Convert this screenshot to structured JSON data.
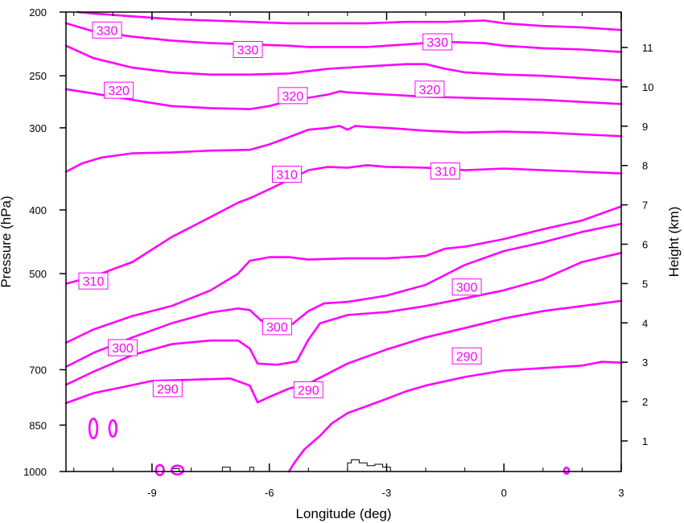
{
  "chart_data": {
    "type": "contour",
    "title": "",
    "xlabel": "Longitude (deg)",
    "ylabel": "Pressure (hPa)",
    "y2label": "Height (km)",
    "xlim": [
      -11.2,
      3
    ],
    "ylim_pressure": [
      1000,
      200
    ],
    "y_scale": "log",
    "x_ticks": [
      -9,
      -6,
      -3,
      0,
      3
    ],
    "x_tick_labels": [
      "-9",
      "-6",
      "-3",
      "0",
      "3"
    ],
    "y_ticks": [
      200,
      250,
      300,
      400,
      500,
      700,
      850,
      1000
    ],
    "y_tick_labels": [
      "200",
      "250",
      "300",
      "400",
      "500",
      "700",
      "850",
      "1000"
    ],
    "y2_ticks": [
      1,
      2,
      3,
      4,
      5,
      6,
      7,
      8,
      9,
      10,
      11
    ],
    "y2_tick_labels": [
      "1",
      "2",
      "3",
      "4",
      "5",
      "6",
      "7",
      "8",
      "9",
      "10",
      "11"
    ],
    "line_color": "#ff00ff",
    "grid": false,
    "series": [
      {
        "value": 290,
        "points": [
          [
            -11.2,
            787
          ],
          [
            -10.5,
            760
          ],
          [
            -9.8,
            745
          ],
          [
            -9.0,
            728
          ],
          [
            -8.0,
            725
          ],
          [
            -7.0,
            722
          ],
          [
            -6.5,
            740
          ],
          [
            -6.3,
            785
          ],
          [
            -6.0,
            770
          ],
          [
            -5.5,
            748
          ],
          [
            -5.0,
            735
          ],
          [
            -4.0,
            685
          ],
          [
            -3.0,
            652
          ],
          [
            -2.0,
            625
          ],
          [
            -1.0,
            605
          ],
          [
            0,
            585
          ],
          [
            1.0,
            570
          ],
          [
            2.0,
            560
          ],
          [
            3.0,
            550
          ]
        ]
      },
      {
        "value": 290,
        "points": [
          [
            -11.2,
            738
          ],
          [
            -10.5,
            705
          ],
          [
            -9.5,
            665
          ],
          [
            -8.5,
            640
          ],
          [
            -7.5,
            632
          ],
          [
            -6.8,
            632
          ],
          [
            -6.5,
            650
          ],
          [
            -6.3,
            685
          ],
          [
            -5.8,
            688
          ],
          [
            -5.3,
            680
          ],
          [
            -5.0,
            630
          ],
          [
            -4.7,
            595
          ],
          [
            -4.0,
            578
          ],
          [
            -3.0,
            572
          ],
          [
            -2.0,
            560
          ],
          [
            -1.0,
            545
          ],
          [
            0,
            530
          ],
          [
            1.0,
            510
          ],
          [
            2.0,
            480
          ],
          [
            3.0,
            465
          ]
        ]
      },
      {
        "value": 300,
        "points": [
          [
            -11.2,
            693
          ],
          [
            -10.5,
            660
          ],
          [
            -9.5,
            625
          ],
          [
            -8.5,
            595
          ],
          [
            -7.5,
            573
          ],
          [
            -6.8,
            565
          ],
          [
            -6.5,
            568
          ],
          [
            -6.2,
            590
          ],
          [
            -5.8,
            600
          ],
          [
            -5.4,
            596
          ],
          [
            -5.0,
            570
          ],
          [
            -4.6,
            555
          ],
          [
            -4.0,
            552
          ],
          [
            -3.0,
            540
          ],
          [
            -2.0,
            520
          ],
          [
            -1.0,
            485
          ],
          [
            0,
            462
          ],
          [
            1.0,
            448
          ],
          [
            2.0,
            432
          ],
          [
            3.0,
            420
          ]
        ]
      },
      {
        "value": 300,
        "points": [
          [
            -11.2,
            637
          ],
          [
            -10.5,
            608
          ],
          [
            -9.5,
            580
          ],
          [
            -8.5,
            560
          ],
          [
            -7.5,
            530
          ],
          [
            -6.8,
            500
          ],
          [
            -6.5,
            478
          ],
          [
            -6.0,
            472
          ],
          [
            -5.5,
            472
          ],
          [
            -5.0,
            476
          ],
          [
            -4.0,
            474
          ],
          [
            -3.0,
            474
          ],
          [
            -2.0,
            470
          ],
          [
            -1.5,
            458
          ],
          [
            -1.0,
            455
          ],
          [
            0,
            443
          ],
          [
            1.0,
            428
          ],
          [
            2.0,
            415
          ],
          [
            3.0,
            395
          ]
        ]
      },
      {
        "value": 310,
        "points": [
          [
            -11.2,
            518
          ],
          [
            -10.5,
            505
          ],
          [
            -9.5,
            480
          ],
          [
            -8.5,
            440
          ],
          [
            -7.5,
            410
          ],
          [
            -6.8,
            390
          ],
          [
            -6.5,
            384
          ],
          [
            -6.0,
            372
          ],
          [
            -5.5,
            360
          ],
          [
            -5.0,
            348
          ],
          [
            -4.5,
            344
          ],
          [
            -4.0,
            345
          ],
          [
            -3.5,
            342
          ],
          [
            -3.0,
            344
          ],
          [
            -2.0,
            345
          ],
          [
            -1.0,
            348
          ],
          [
            0,
            346
          ],
          [
            1.0,
            348
          ],
          [
            2.0,
            350
          ],
          [
            3.0,
            352
          ]
        ]
      },
      {
        "value": 310,
        "points": [
          [
            -11.2,
            350
          ],
          [
            -10.8,
            340
          ],
          [
            -10.3,
            333
          ],
          [
            -9.5,
            328
          ],
          [
            -8.5,
            327
          ],
          [
            -7.5,
            325
          ],
          [
            -6.5,
            324
          ],
          [
            -6.0,
            318
          ],
          [
            -5.5,
            310
          ],
          [
            -5.0,
            302
          ],
          [
            -4.5,
            300
          ],
          [
            -4.2,
            298
          ],
          [
            -4.0,
            302
          ],
          [
            -3.8,
            298
          ],
          [
            -3.5,
            299
          ],
          [
            -3.0,
            300
          ],
          [
            -2.0,
            303
          ],
          [
            -1.0,
            305
          ],
          [
            0,
            304
          ],
          [
            1.0,
            305
          ],
          [
            2.0,
            307
          ],
          [
            3.0,
            309
          ]
        ]
      },
      {
        "value": 320,
        "points": [
          [
            -11.2,
            262
          ],
          [
            -10.5,
            266
          ],
          [
            -9.5,
            272
          ],
          [
            -8.5,
            278
          ],
          [
            -7.5,
            280
          ],
          [
            -6.5,
            281
          ],
          [
            -6.0,
            278
          ],
          [
            -5.5,
            273
          ],
          [
            -5.0,
            270
          ],
          [
            -4.5,
            267
          ],
          [
            -4.2,
            264
          ],
          [
            -4.0,
            265
          ],
          [
            -3.5,
            266
          ],
          [
            -3.0,
            267
          ],
          [
            -2.0,
            269
          ],
          [
            -1.0,
            270
          ],
          [
            0,
            271
          ],
          [
            1.0,
            272
          ],
          [
            2.0,
            274
          ],
          [
            3.0,
            276
          ]
        ]
      },
      {
        "value": 320,
        "points": [
          [
            -11.2,
            225
          ],
          [
            -10.5,
            235
          ],
          [
            -9.5,
            243
          ],
          [
            -8.5,
            247
          ],
          [
            -7.5,
            249
          ],
          [
            -6.5,
            249
          ],
          [
            -5.5,
            248
          ],
          [
            -5.0,
            246
          ],
          [
            -4.5,
            244
          ],
          [
            -3.5,
            242
          ],
          [
            -2.5,
            240
          ],
          [
            -2.0,
            240
          ],
          [
            -1.5,
            244
          ],
          [
            -1.0,
            247
          ],
          [
            0,
            249
          ],
          [
            1.0,
            250
          ],
          [
            2.0,
            252
          ],
          [
            3.0,
            254
          ]
        ]
      },
      {
        "value": 330,
        "points": [
          [
            -11.2,
            208
          ],
          [
            -10.5,
            214
          ],
          [
            -9.5,
            218
          ],
          [
            -8.5,
            221
          ],
          [
            -7.5,
            223
          ],
          [
            -6.5,
            224
          ],
          [
            -5.5,
            225
          ],
          [
            -5.0,
            226
          ],
          [
            -4.5,
            226
          ],
          [
            -3.5,
            226
          ],
          [
            -2.5,
            224
          ],
          [
            -1.5,
            222
          ],
          [
            -0.5,
            223
          ],
          [
            0,
            225
          ],
          [
            1.0,
            227
          ],
          [
            2.0,
            228
          ],
          [
            3.0,
            230
          ]
        ]
      },
      {
        "value": 330,
        "points": [
          [
            -10.9,
            200
          ],
          [
            -10.5,
            201
          ],
          [
            -9.5,
            203
          ],
          [
            -8.5,
            205
          ],
          [
            -7.5,
            206
          ],
          [
            -6.5,
            207
          ],
          [
            -5.5,
            208
          ],
          [
            -4.5,
            208
          ],
          [
            -3.5,
            208
          ],
          [
            -2.5,
            207
          ],
          [
            -1.5,
            207
          ],
          [
            -0.5,
            206
          ],
          [
            0,
            208
          ],
          [
            1.0,
            210
          ],
          [
            2.0,
            211
          ],
          [
            3.0,
            213
          ]
        ]
      },
      {
        "value": 290,
        "points": [
          [
            -5.5,
            1000
          ],
          [
            -5.35,
            968
          ],
          [
            -5.1,
            925
          ],
          [
            -4.7,
            882
          ],
          [
            -4.4,
            845
          ],
          [
            -4.0,
            815
          ],
          [
            -3.5,
            795
          ],
          [
            -3.0,
            775
          ],
          [
            -2.5,
            755
          ],
          [
            -2.0,
            740
          ],
          [
            -1.0,
            718
          ],
          [
            0,
            702
          ],
          [
            1.0,
            696
          ],
          [
            2.0,
            690
          ],
          [
            2.5,
            681
          ],
          [
            3.0,
            683
          ]
        ]
      }
    ],
    "closed_contours": [
      {
        "center": [
          -10.5,
          860
        ],
        "rx": 0.1,
        "ry": 30
      },
      {
        "center": [
          -10.0,
          860
        ],
        "rx": 0.09,
        "ry": 25
      }
    ],
    "labels": [
      {
        "value": "330",
        "x": -10.15,
        "p": 213
      },
      {
        "value": "330",
        "x": -6.55,
        "p": 228
      },
      {
        "value": "330",
        "x": -1.7,
        "p": 222
      },
      {
        "value": "320",
        "x": -9.85,
        "p": 263
      },
      {
        "value": "320",
        "x": -5.4,
        "p": 268
      },
      {
        "value": "320",
        "x": -1.9,
        "p": 262
      },
      {
        "value": "310",
        "x": -5.55,
        "p": 353
      },
      {
        "value": "310",
        "x": -1.5,
        "p": 349
      },
      {
        "value": "310",
        "x": -10.5,
        "p": 513
      },
      {
        "value": "300",
        "x": -0.95,
        "p": 524
      },
      {
        "value": "300",
        "x": -5.8,
        "p": 602
      },
      {
        "value": "300",
        "x": -9.75,
        "p": 648
      },
      {
        "value": "290",
        "x": -0.95,
        "p": 667
      },
      {
        "value": "290",
        "x": -8.6,
        "p": 748
      },
      {
        "value": "290",
        "x": -5.0,
        "p": 751
      }
    ],
    "terrain": [
      [
        -8.5,
        1000
      ],
      [
        -8.5,
        990
      ],
      [
        -8.3,
        990
      ],
      [
        -8.3,
        1000
      ],
      [
        -7.2,
        1000
      ],
      [
        -7.2,
        985
      ],
      [
        -7.0,
        985
      ],
      [
        -7.0,
        1000
      ],
      [
        -6.5,
        1000
      ],
      [
        -6.5,
        985
      ],
      [
        -6.4,
        985
      ],
      [
        -6.4,
        1000
      ],
      [
        -4.0,
        1000
      ],
      [
        -4.0,
        970
      ],
      [
        -3.9,
        970
      ],
      [
        -3.9,
        960
      ],
      [
        -3.7,
        960
      ],
      [
        -3.7,
        970
      ],
      [
        -3.5,
        970
      ],
      [
        -3.5,
        980
      ],
      [
        -3.3,
        980
      ],
      [
        -3.3,
        975
      ],
      [
        -3.1,
        975
      ],
      [
        -3.1,
        985
      ],
      [
        -2.9,
        985
      ],
      [
        -2.9,
        1000
      ]
    ],
    "terrain_blobs": [
      {
        "center": [
          -8.8,
          995
        ],
        "rx": 0.1,
        "ry": 12
      },
      {
        "center": [
          -8.35,
          995
        ],
        "rx": 0.15,
        "ry": 10
      },
      {
        "center": [
          1.6,
          997
        ],
        "rx": 0.06,
        "ry": 5
      }
    ]
  }
}
